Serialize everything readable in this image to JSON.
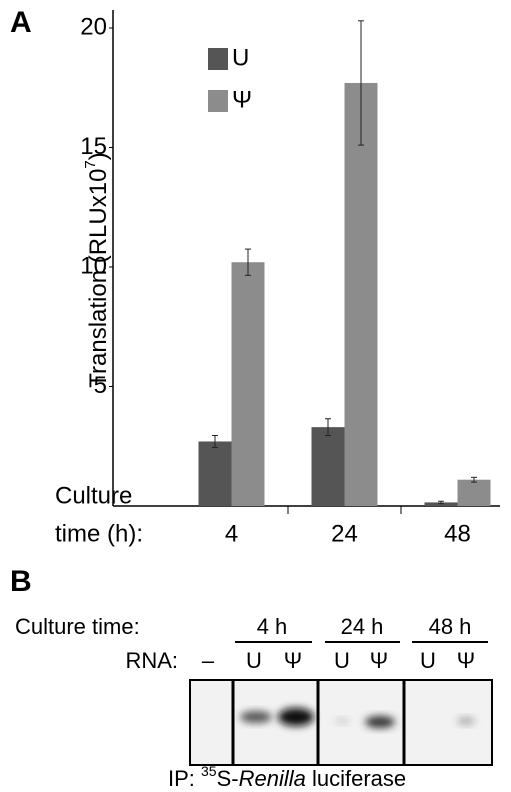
{
  "chart_data": {
    "type": "bar",
    "panel_label": "A",
    "ylabel": "Translation (RLUx10",
    "ylabel_sup": "7",
    "ylabel_end": ")",
    "xlabel_lines": [
      "Culture",
      "time (h):"
    ],
    "categories": [
      "4",
      "24",
      "48"
    ],
    "series": [
      {
        "name": "U",
        "color": "#555555",
        "values": [
          2.7,
          3.3,
          0.15
        ],
        "errors": [
          0.25,
          0.35,
          0.05
        ]
      },
      {
        "name": "Ψ",
        "color": "#8c8c8c",
        "values": [
          10.2,
          17.7,
          1.1
        ],
        "errors": [
          0.55,
          2.6,
          0.1
        ]
      }
    ],
    "ylim": [
      0,
      20
    ],
    "yticks": [
      5,
      10,
      15,
      20
    ],
    "legend": "upper-left"
  },
  "panel_b": {
    "panel_label": "B",
    "culture_time_label": "Culture time:",
    "groups": [
      "4 h",
      "24 h",
      "48 h"
    ],
    "rna_label": "RNA:",
    "lanes": [
      "–",
      "U",
      "Ψ",
      "U",
      "Ψ",
      "U",
      "Ψ"
    ],
    "caption": {
      "prefix": "IP: ",
      "sup": "35",
      "mid": "S-",
      "italic": "Renilla",
      "end": " luciferase"
    }
  }
}
